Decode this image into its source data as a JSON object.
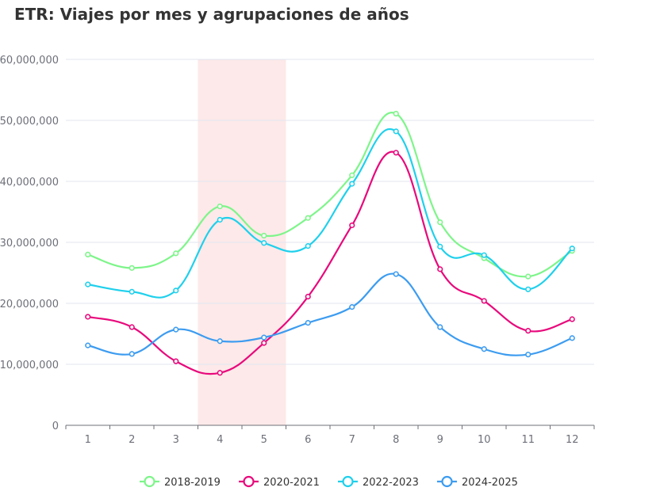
{
  "chart_data": {
    "type": "line",
    "title": "ETR: Viajes por mes y agrupaciones de años",
    "xlabel": "",
    "ylabel": "",
    "categories": [
      "1",
      "2",
      "3",
      "4",
      "5",
      "6",
      "7",
      "8",
      "9",
      "10",
      "11",
      "12"
    ],
    "ylim": [
      0,
      60000000
    ],
    "yticks": [
      "0",
      "10,000,000",
      "20,000,000",
      "30,000,000",
      "40,000,000",
      "50,000,000",
      "60,000,000"
    ],
    "highlight_band": [
      "4",
      "6"
    ],
    "highlight_color": "#fde9e9",
    "grid": true,
    "legend_position": "bottom",
    "series": [
      {
        "name": "2018-2019",
        "color": "#7ef58a",
        "values": [
          28000000,
          25800000,
          28200000,
          35900000,
          31100000,
          34000000,
          41000000,
          51100000,
          33300000,
          27400000,
          24400000,
          28600000
        ]
      },
      {
        "name": "2020-2021",
        "color": "#e8097c",
        "values": [
          17800000,
          16100000,
          10500000,
          8600000,
          13500000,
          21100000,
          32800000,
          44700000,
          25600000,
          20400000,
          15500000,
          17400000
        ]
      },
      {
        "name": "2022-2023",
        "color": "#1fd0ec",
        "values": [
          23100000,
          21900000,
          22100000,
          33700000,
          29900000,
          29400000,
          39600000,
          48200000,
          29300000,
          27900000,
          22300000,
          29000000
        ]
      },
      {
        "name": "2024-2025",
        "color": "#3d9cf0",
        "values": [
          13100000,
          11700000,
          15700000,
          13800000,
          14400000,
          16800000,
          19400000,
          24800000,
          16100000,
          12500000,
          11600000,
          14300000
        ]
      }
    ]
  }
}
